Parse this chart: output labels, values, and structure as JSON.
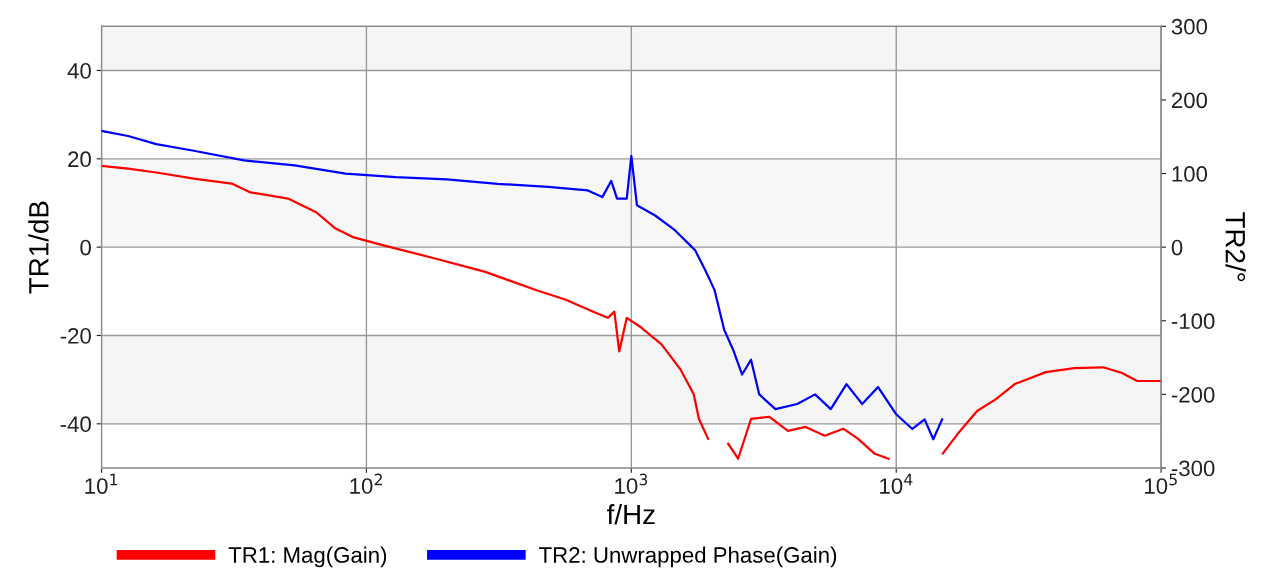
{
  "chart_data": {
    "type": "line",
    "xlabel": "f/Hz",
    "ylabel": "TR1/dB",
    "y2label": "TR2/°",
    "log": "x",
    "xlim": [
      10,
      100000
    ],
    "xticks": [
      {
        "value": 10,
        "label": "10$^{1}$"
      },
      {
        "value": 100,
        "label": "10$^{2}$"
      },
      {
        "value": 1000,
        "label": "10$^{3}$"
      },
      {
        "value": 10000,
        "label": "10$^{4}$"
      },
      {
        "value": 100000,
        "label": "10$^{5}$"
      }
    ],
    "ylim": [
      -50,
      50
    ],
    "yticks": [
      -40,
      -20,
      0,
      20,
      40
    ],
    "y2lim": [
      -300,
      300
    ],
    "y2ticks": [
      -300,
      -200,
      -100,
      0,
      100,
      200,
      300
    ],
    "grid": true,
    "legend": "bottom",
    "line_style": "solid",
    "marker": "none",
    "bands": [
      {
        "axis": "y",
        "from": 40,
        "to": 50,
        "color": "#f5f5f5"
      },
      {
        "axis": "y",
        "from": 0,
        "to": 20,
        "color": "#f7f7f7"
      },
      {
        "axis": "y",
        "from": -40,
        "to": -20,
        "color": "#f5f5f5"
      }
    ],
    "series": [
      {
        "name": "TR1: Mag(Gain)",
        "color": "#ff0000",
        "x": [
          10,
          12.6,
          16.1,
          22.3,
          31.0,
          36.5,
          50.6,
          64.6,
          76.1,
          89.6,
          116,
          180,
          281,
          436,
          566,
          718,
          815,
          863,
          900,
          961,
          1090,
          1300,
          1530,
          1720,
          1800,
          1950,
          2120,
          2320,
          2530,
          2830,
          3320,
          3900,
          4550,
          5370,
          6310,
          7180,
          8260,
          9350,
          10600,
          12300,
          14400,
          15000,
          17100,
          20200,
          23800,
          28000,
          36700,
          47000,
          60400,
          71200,
          81200,
          92100,
          100000
        ],
        "values": [
          18.4,
          17.8,
          16.9,
          15.5,
          14.4,
          12.4,
          11.0,
          7.9,
          4.3,
          2.2,
          0.4,
          -2.5,
          -5.6,
          -9.7,
          -11.9,
          -14.6,
          -16.0,
          -14.6,
          -23.6,
          -16.0,
          -18.2,
          -22.0,
          -27.6,
          -33.3,
          -38.9,
          -43.4,
          null,
          -44.5,
          -47.9,
          -38.9,
          -38.4,
          -41.6,
          -40.7,
          -42.7,
          -41.1,
          -43.4,
          -46.7,
          -47.9,
          null,
          null,
          null,
          -46.7,
          -42.2,
          -37.1,
          -34.4,
          -31.0,
          -28.3,
          -27.4,
          -27.2,
          -28.5,
          -30.3,
          -30.3,
          -30.3
        ]
      },
      {
        "name": "TR2: Unwrapped Phase(Gain)",
        "color": "#0000ff",
        "axis": "y2",
        "x": [
          10,
          12.6,
          16.1,
          22.3,
          34.5,
          53.6,
          83.4,
          129,
          201,
          313,
          485,
          685,
          777,
          840,
          883,
          961,
          1000,
          1050,
          1230,
          1460,
          1740,
          1900,
          2060,
          2240,
          2420,
          2620,
          2830,
          3040,
          3500,
          4230,
          4940,
          5660,
          6490,
          7440,
          8540,
          10000,
          11500,
          12800,
          13800,
          14900
        ],
        "values": [
          158,
          151,
          140,
          131,
          118,
          111,
          100,
          95,
          92,
          86,
          82,
          77,
          68,
          90,
          66,
          66,
          124,
          57,
          43,
          23,
          -4,
          -31,
          -58,
          -112,
          -139,
          -173,
          -153,
          -200,
          -220,
          -213,
          -200,
          -220,
          -186,
          -213,
          -190,
          -227,
          -247,
          -234,
          -261,
          -234
        ]
      }
    ]
  }
}
